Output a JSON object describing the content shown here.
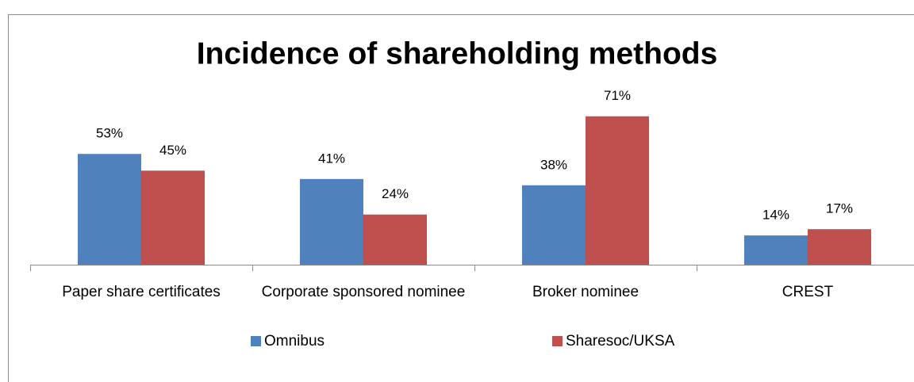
{
  "chart_data": {
    "type": "bar",
    "title": "Incidence of shareholding methods",
    "categories": [
      "Paper share certificates",
      "Corporate sponsored nominee",
      "Broker nominee",
      "CREST"
    ],
    "series": [
      {
        "name": "Omnibus",
        "color": "#4f81bd",
        "values": [
          53,
          41,
          38,
          14
        ],
        "value_labels": [
          "53%",
          "41%",
          "38%",
          "14%"
        ]
      },
      {
        "name": "Sharesoc/UKSA",
        "color": "#c0504d",
        "values": [
          45,
          24,
          71,
          17
        ],
        "value_labels": [
          "45%",
          "24%",
          "71%",
          "17%"
        ]
      }
    ],
    "ylim": [
      0,
      80
    ],
    "legend": "bottom"
  }
}
